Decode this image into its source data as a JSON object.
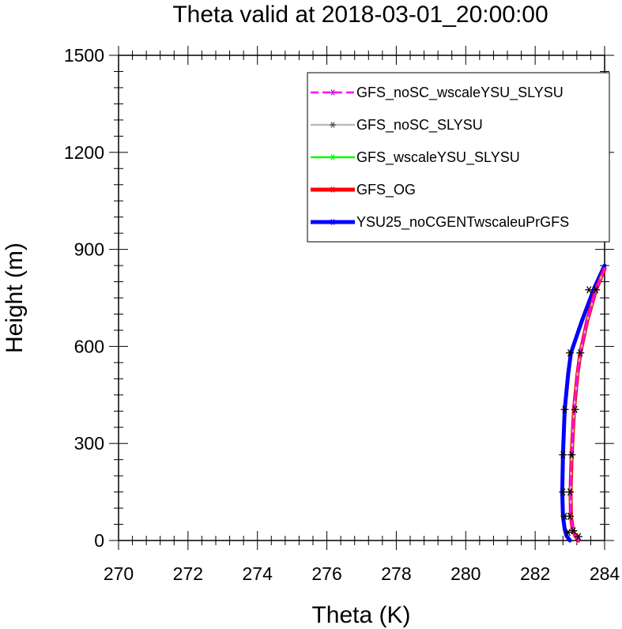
{
  "chart_data": {
    "type": "line",
    "title": "Theta valid at 2018-03-01_20:00:00",
    "xlabel": "Theta (K)",
    "ylabel": "Height (m)",
    "xlim": [
      270,
      284
    ],
    "ylim": [
      0,
      1500
    ],
    "xticks": [
      "270",
      "272",
      "274",
      "276",
      "278",
      "280",
      "282",
      "284"
    ],
    "yticks": [
      "0",
      "300",
      "600",
      "900",
      "1200",
      "1500"
    ],
    "legend_position": "top-right",
    "series": [
      {
        "name": "YSU25_noCGENTwscaleuPrGFS",
        "color": "#0000ff",
        "style": "solid",
        "width": "thick",
        "points": [
          [
            283.0,
            0
          ],
          [
            282.9,
            15
          ],
          [
            282.85,
            35
          ],
          [
            282.8,
            75
          ],
          [
            282.78,
            150
          ],
          [
            282.8,
            265
          ],
          [
            282.85,
            405
          ],
          [
            282.95,
            515
          ],
          [
            283.03,
            580
          ],
          [
            283.35,
            680
          ],
          [
            283.7,
            780
          ],
          [
            284.0,
            850
          ]
        ]
      },
      {
        "name": "GFS_OG",
        "color": "#ff0000",
        "style": "solid",
        "width": "thick",
        "points": [
          [
            283.25,
            0
          ],
          [
            283.15,
            15
          ],
          [
            283.08,
            35
          ],
          [
            283.03,
            75
          ],
          [
            283.02,
            150
          ],
          [
            283.05,
            265
          ],
          [
            283.12,
            405
          ],
          [
            283.22,
            515
          ],
          [
            283.3,
            580
          ],
          [
            283.5,
            680
          ],
          [
            283.75,
            775
          ],
          [
            284.0,
            840
          ]
        ]
      },
      {
        "name": "GFS_wscaleYSU_SLYSU",
        "color": "#00ff00",
        "style": "solid",
        "width": "medium",
        "points": [
          [
            283.25,
            0
          ],
          [
            283.15,
            15
          ],
          [
            283.08,
            35
          ],
          [
            283.03,
            75
          ],
          [
            283.02,
            150
          ],
          [
            283.05,
            265
          ],
          [
            283.12,
            405
          ],
          [
            283.22,
            515
          ],
          [
            283.3,
            580
          ],
          [
            283.5,
            680
          ],
          [
            283.75,
            775
          ],
          [
            284.0,
            840
          ]
        ]
      },
      {
        "name": "GFS_noSC_SLYSU",
        "color": "#bbbbbb",
        "style": "solid",
        "width": "medium",
        "points": [
          [
            283.25,
            0
          ],
          [
            283.15,
            15
          ],
          [
            283.08,
            35
          ],
          [
            283.03,
            75
          ],
          [
            283.02,
            150
          ],
          [
            283.05,
            265
          ],
          [
            283.12,
            405
          ],
          [
            283.22,
            515
          ],
          [
            283.3,
            580
          ],
          [
            283.5,
            680
          ],
          [
            283.75,
            775
          ],
          [
            284.0,
            840
          ]
        ]
      },
      {
        "name": "GFS_noSC_wscaleYSU_SLYSU",
        "color": "#ff00ff",
        "style": "dashed",
        "width": "medium",
        "points": [
          [
            283.25,
            0
          ],
          [
            283.15,
            15
          ],
          [
            283.08,
            35
          ],
          [
            283.03,
            75
          ],
          [
            283.02,
            150
          ],
          [
            283.05,
            265
          ],
          [
            283.12,
            405
          ],
          [
            283.22,
            515
          ],
          [
            283.3,
            580
          ],
          [
            283.5,
            680
          ],
          [
            283.75,
            775
          ],
          [
            284.0,
            840
          ]
        ]
      }
    ],
    "markers": {
      "symbol": "asterisk",
      "color": "#000000",
      "points": [
        [
          283.25,
          12
        ],
        [
          283.1,
          30
        ],
        [
          283.0,
          75
        ],
        [
          283.0,
          150
        ],
        [
          283.05,
          265
        ],
        [
          283.15,
          405
        ],
        [
          283.3,
          580
        ],
        [
          283.75,
          775
        ],
        [
          282.95,
          25
        ],
        [
          282.85,
          75
        ],
        [
          282.8,
          150
        ],
        [
          282.8,
          265
        ],
        [
          282.85,
          405
        ],
        [
          283.0,
          580
        ],
        [
          283.55,
          775
        ]
      ]
    },
    "legend_order": [
      "GFS_noSC_wscaleYSU_SLYSU",
      "GFS_noSC_SLYSU",
      "GFS_wscaleYSU_SLYSU",
      "GFS_OG",
      "YSU25_noCGENTwscaleuPrGFS"
    ]
  }
}
